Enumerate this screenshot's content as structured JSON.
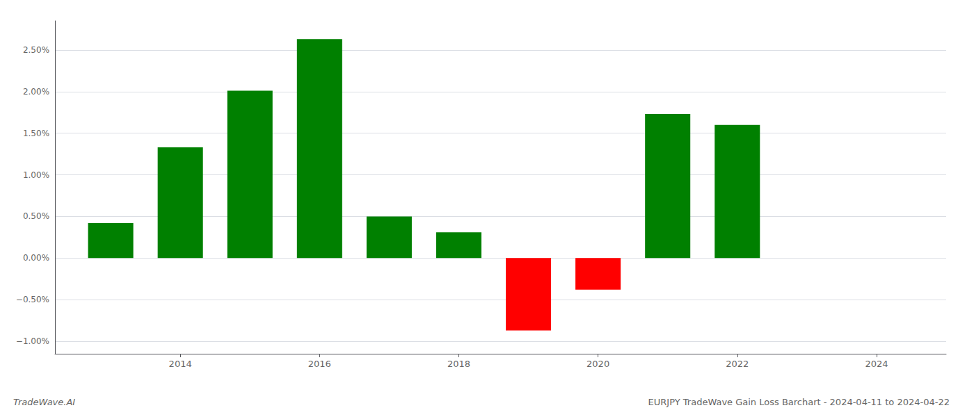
{
  "chart_data": {
    "type": "bar",
    "title": "EURJPY TradeWave Gain Loss Barchart - 2024-04-11 to 2024-04-22",
    "annotations": [
      "TradeWave.AI"
    ],
    "x": [
      2013,
      2014,
      2015,
      2016,
      2017,
      2018,
      2019,
      2020,
      2021,
      2022
    ],
    "values": [
      0.42,
      1.33,
      2.01,
      2.63,
      0.5,
      0.31,
      -0.87,
      -0.38,
      1.73,
      1.6
    ],
    "colors": [
      "#008000",
      "#008000",
      "#008000",
      "#008000",
      "#008000",
      "#008000",
      "#ff0000",
      "#ff0000",
      "#008000",
      "#008000"
    ],
    "xlim": [
      2012.2,
      2025.0
    ],
    "xticks": [
      2014,
      2016,
      2018,
      2020,
      2022,
      2024
    ],
    "ylim": [
      -1.15,
      2.85
    ],
    "yticks": [
      {
        "value": -1.0,
        "label": "−1.00%"
      },
      {
        "value": -0.5,
        "label": "−0.50%"
      },
      {
        "value": 0.0,
        "label": "0.00%"
      },
      {
        "value": 0.5,
        "label": "0.50%"
      },
      {
        "value": 1.0,
        "label": "1.00%"
      },
      {
        "value": 1.5,
        "label": "1.50%"
      },
      {
        "value": 2.0,
        "label": "2.00%"
      },
      {
        "value": 2.5,
        "label": "2.50%"
      }
    ],
    "grid": true
  }
}
